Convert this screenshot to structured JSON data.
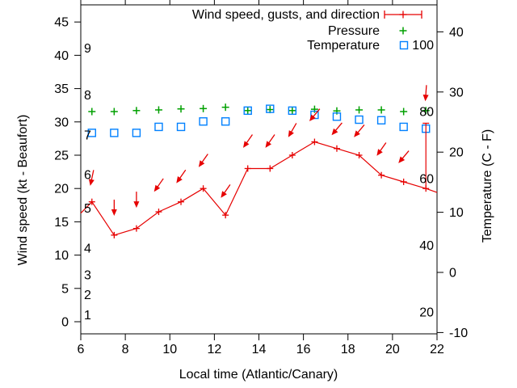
{
  "colors": {
    "wind": "#e60000",
    "pressure": "#00a000",
    "temperature": "#0080ff",
    "axis": "#000000",
    "background": "#ffffff"
  },
  "legend": {
    "position": "top-right-inside",
    "items": [
      {
        "label": "Wind speed, gusts, and direction",
        "sample": "errorbar-cross",
        "color": "#e60000"
      },
      {
        "label": "Pressure",
        "sample": "plus",
        "color": "#00a000"
      },
      {
        "label": "Temperature",
        "sample": "open-square",
        "color": "#0080ff"
      }
    ]
  },
  "chart_data": {
    "type": "line",
    "xlabel": "Local time (Atlantic/Canary)",
    "ylabel_left": "Wind speed (kt - Beaufort)",
    "ylabel_right": "Temperature (C - F)",
    "x_range": [
      6,
      22
    ],
    "y_left_range_kt": [
      0,
      45
    ],
    "y_right_range_C": [
      -10,
      40
    ],
    "grid": false,
    "x_ticks": [
      6,
      8,
      10,
      12,
      14,
      16,
      18,
      20,
      22
    ],
    "y_left_ticks": [
      0,
      5,
      10,
      15,
      20,
      25,
      30,
      35,
      40,
      45
    ],
    "y_right_ticks": [
      -10,
      0,
      10,
      20,
      30,
      40
    ],
    "beaufort_scale_labels": [
      {
        "label": "1",
        "kt": 1
      },
      {
        "label": "2",
        "kt": 4
      },
      {
        "label": "3",
        "kt": 7
      },
      {
        "label": "4",
        "kt": 11
      },
      {
        "label": "5",
        "kt": 17
      },
      {
        "label": "6",
        "kt": 22
      },
      {
        "label": "7",
        "kt": 28
      },
      {
        "label": "8",
        "kt": 34
      },
      {
        "label": "9",
        "kt": 41
      }
    ],
    "fahrenheit_scale_labels": [
      {
        "label": "20",
        "F": 20
      },
      {
        "label": "40",
        "F": 40
      },
      {
        "label": "60",
        "F": 60
      },
      {
        "label": "80",
        "F": 80
      },
      {
        "label": "100",
        "F": 100
      }
    ],
    "x": [
      6.5,
      7.5,
      8.5,
      9.5,
      10.5,
      11.5,
      12.5,
      13.5,
      14.5,
      15.5,
      16.5,
      17.5,
      18.5,
      19.5,
      20.5,
      21.5
    ],
    "series": [
      {
        "name": "Wind speed, gusts, and direction",
        "marker": "cross",
        "color": "#e60000",
        "values_kt": [
          18,
          13,
          14,
          16.5,
          18,
          20,
          16,
          23,
          23,
          25,
          27,
          26,
          25,
          22,
          21,
          20
        ]
      },
      {
        "name": "Pressure",
        "marker": "plus",
        "color": "#00a000",
        "values_left_axis_position_kt": [
          31.55,
          31.55,
          31.7,
          31.8,
          31.95,
          32.0,
          32.2,
          31.7,
          31.85,
          31.7,
          31.9,
          31.65,
          31.8,
          31.8,
          31.55,
          31.7
        ]
      },
      {
        "name": "Temperature",
        "marker": "open-square",
        "color": "#0080ff",
        "values_C": [
          23.2,
          23.2,
          23.2,
          24.2,
          24.2,
          25.1,
          25.1,
          26.9,
          27.2,
          26.9,
          26.2,
          25.9,
          25.4,
          25.3,
          24.2,
          23.9
        ]
      }
    ],
    "wind_line_edge_points": {
      "start": {
        "t": 6.0,
        "kt": 16.3
      },
      "end": {
        "t": 22.0,
        "kt": 19.4
      }
    },
    "gust_bar": {
      "t": 21.5,
      "from_kt": 20,
      "to_kt": 29.8
    },
    "wind_direction_arrows": [
      {
        "t": 6.5,
        "tip_kt": 20.4,
        "angle_deg": 12
      },
      {
        "t": 7.5,
        "tip_kt": 15.9,
        "angle_deg": 0
      },
      {
        "t": 8.5,
        "tip_kt": 17.1,
        "angle_deg": 0
      },
      {
        "t": 9.5,
        "tip_kt": 19.5,
        "angle_deg": 35
      },
      {
        "t": 10.5,
        "tip_kt": 20.8,
        "angle_deg": 35
      },
      {
        "t": 11.5,
        "tip_kt": 23.2,
        "angle_deg": 35
      },
      {
        "t": 12.5,
        "tip_kt": 18.6,
        "angle_deg": 35
      },
      {
        "t": 13.5,
        "tip_kt": 26.1,
        "angle_deg": 35
      },
      {
        "t": 14.5,
        "tip_kt": 26.1,
        "angle_deg": 35
      },
      {
        "t": 15.5,
        "tip_kt": 27.7,
        "angle_deg": 30
      },
      {
        "t": 16.5,
        "tip_kt": 30.1,
        "angle_deg": 40
      },
      {
        "t": 17.5,
        "tip_kt": 28.0,
        "angle_deg": 40
      },
      {
        "t": 18.5,
        "tip_kt": 27.7,
        "angle_deg": 40
      },
      {
        "t": 19.5,
        "tip_kt": 24.9,
        "angle_deg": 35
      },
      {
        "t": 20.5,
        "tip_kt": 23.8,
        "angle_deg": 40
      },
      {
        "t": 21.5,
        "tip_kt": 33.1,
        "angle_deg": 4
      }
    ]
  }
}
